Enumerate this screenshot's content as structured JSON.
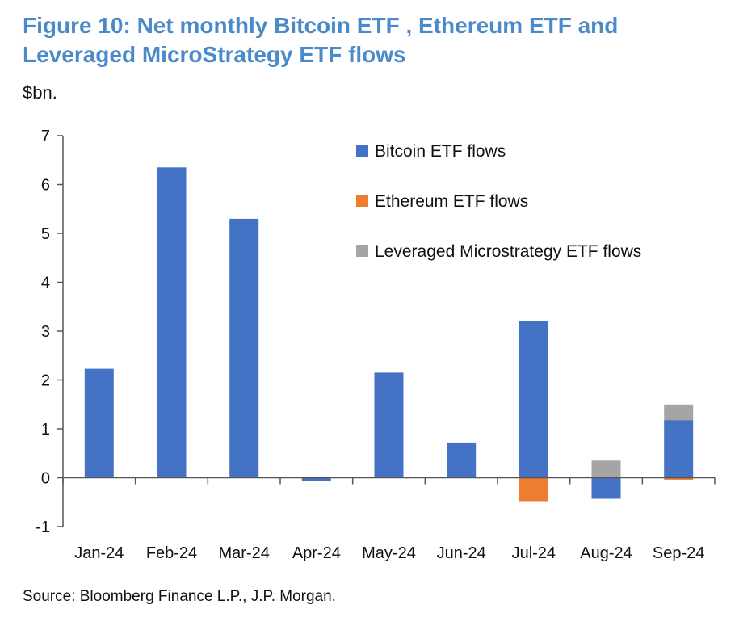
{
  "title": "Figure 10: Net monthly Bitcoin ETF , Ethereum ETF and Leveraged MicroStrategy ETF flows",
  "unit_label": "$bn.",
  "source": "Source: Bloomberg Finance L.P., J.P. Morgan.",
  "chart_data": {
    "type": "bar",
    "stacked": true,
    "categories": [
      "Jan-24",
      "Feb-24",
      "Mar-24",
      "Apr-24",
      "May-24",
      "Jun-24",
      "Jul-24",
      "Aug-24",
      "Sep-24"
    ],
    "series": [
      {
        "name": "Bitcoin ETF flows",
        "color": "#4472C4",
        "values": [
          2.23,
          6.35,
          5.3,
          -0.06,
          2.15,
          0.72,
          3.2,
          -0.43,
          1.18
        ]
      },
      {
        "name": "Ethereum ETF flows",
        "color": "#ED7D31",
        "values": [
          0,
          0,
          0,
          0,
          0,
          0,
          -0.48,
          0,
          -0.04
        ]
      },
      {
        "name": "Leveraged Microstrategy ETF flows",
        "color": "#A5A5A5",
        "values": [
          0,
          0,
          0,
          0,
          0,
          0,
          0,
          0.35,
          0.32
        ]
      }
    ],
    "ylim": [
      -1,
      7
    ],
    "yticks": [
      "-1",
      "0",
      "1",
      "2",
      "3",
      "4",
      "5",
      "6",
      "7"
    ],
    "grid": false,
    "legend_position": "top-right"
  }
}
